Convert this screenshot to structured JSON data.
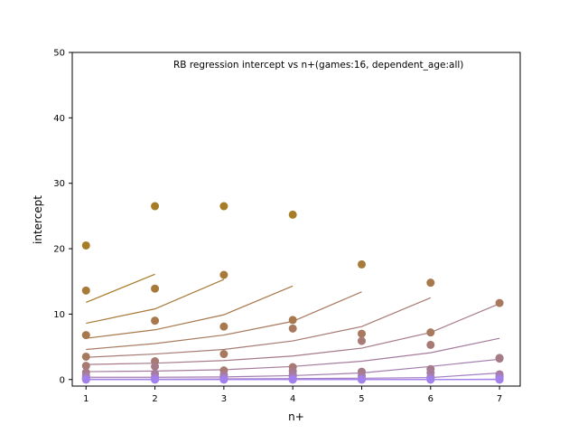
{
  "chart_data": {
    "type": "scatter",
    "title": "RB regression intercept vs n+(games:16, dependent_age:all)",
    "xlabel": "n+",
    "ylabel": "intercept",
    "xlim": [
      0.8,
      7.3
    ],
    "ylim": [
      -1,
      50
    ],
    "xticks": [
      1,
      2,
      3,
      4,
      5,
      6,
      7
    ],
    "yticks": [
      0,
      10,
      20,
      30,
      40,
      50
    ],
    "grid": false,
    "legend": "none",
    "series": [
      {
        "color": "#a67c27",
        "x": [
          1,
          2,
          3,
          4
        ],
        "points": [
          20.5,
          26.5,
          26.5,
          25.2
        ],
        "fit": [
          11.8,
          16.1
        ]
      },
      {
        "color": "#a77a3a",
        "x": [
          1,
          2,
          3,
          4,
          5
        ],
        "points": [
          13.6,
          13.9,
          16.0,
          null,
          17.6
        ],
        "fit": [
          8.6,
          10.8,
          15.3
        ]
      },
      {
        "color": "#a7794c",
        "x": [
          1,
          2,
          3,
          4,
          5,
          6
        ],
        "points": [
          6.8,
          9.0,
          8.1,
          9.1,
          null,
          14.8
        ],
        "fit": [
          6.3,
          7.6,
          9.9,
          14.3
        ]
      },
      {
        "color": "#a77a60",
        "x": [
          1,
          2,
          3,
          4,
          5,
          6,
          7
        ],
        "points": [
          3.5,
          null,
          3.9,
          7.8,
          7.0,
          7.2,
          11.7
        ],
        "fit": [
          4.6,
          5.5,
          6.8,
          8.9,
          13.4
        ]
      },
      {
        "color": "#a77a74",
        "x": [
          1,
          2,
          3,
          4,
          5,
          6,
          7
        ],
        "points": [
          2.1,
          2.8,
          1.4,
          1.9,
          5.9,
          5.3,
          3.3
        ],
        "fit": [
          3.4,
          3.9,
          4.6,
          5.9,
          8.1,
          12.5
        ]
      },
      {
        "color": "#a67b88",
        "x": [
          1,
          2,
          3,
          4,
          5,
          6,
          7
        ],
        "points": [
          1.1,
          2.0,
          null,
          1.3,
          1.2,
          1.6,
          3.2
        ],
        "fit": [
          2.3,
          2.5,
          2.9,
          3.6,
          4.8,
          7.2,
          11.6
        ]
      },
      {
        "color": "#a67c9c",
        "x": [
          1,
          2,
          3,
          4,
          5,
          6,
          7
        ],
        "points": [
          0.6,
          0.9,
          0.7,
          0.8,
          0.6,
          1.0,
          0.8
        ],
        "fit": [
          1.2,
          1.3,
          1.5,
          2.0,
          2.8,
          4.1,
          6.3
        ]
      },
      {
        "color": "#a57db0",
        "x": [
          1,
          2,
          3,
          4,
          5,
          6,
          7
        ],
        "points": [
          0.3,
          0.4,
          0.3,
          0.4,
          0.2,
          0.4,
          0.5
        ],
        "fit": [
          0.35,
          0.35,
          0.4,
          0.6,
          1.0,
          2.0,
          3.1
        ]
      },
      {
        "color": "#a57ec4",
        "x": [
          1,
          2,
          3,
          4,
          5,
          6,
          7
        ],
        "points": [
          0.2,
          0.2,
          0.2,
          0.2,
          0.1,
          0.1,
          0.3
        ],
        "fit": [
          0.05,
          0.05,
          0.1,
          0.15,
          0.2,
          0.3,
          1.0
        ]
      },
      {
        "color": "#a480d8",
        "x": [
          1,
          2,
          3,
          4,
          5,
          6,
          7
        ],
        "points": [
          0.0,
          0.0,
          0.0,
          0.0,
          0.0,
          0.0,
          0.0
        ],
        "fit": [
          0.0,
          0.0,
          0.0,
          0.0,
          0.0,
          0.0,
          0.05
        ]
      },
      {
        "color": "#a381ec",
        "x": [
          1,
          2,
          3,
          4,
          5,
          6,
          7
        ],
        "points": [
          0.0,
          0.0,
          0.0,
          0.0,
          0.0,
          0.0,
          0.0
        ],
        "fit": [
          0.0,
          0.0,
          0.0,
          0.0,
          0.0,
          0.0,
          0.0
        ]
      }
    ]
  }
}
